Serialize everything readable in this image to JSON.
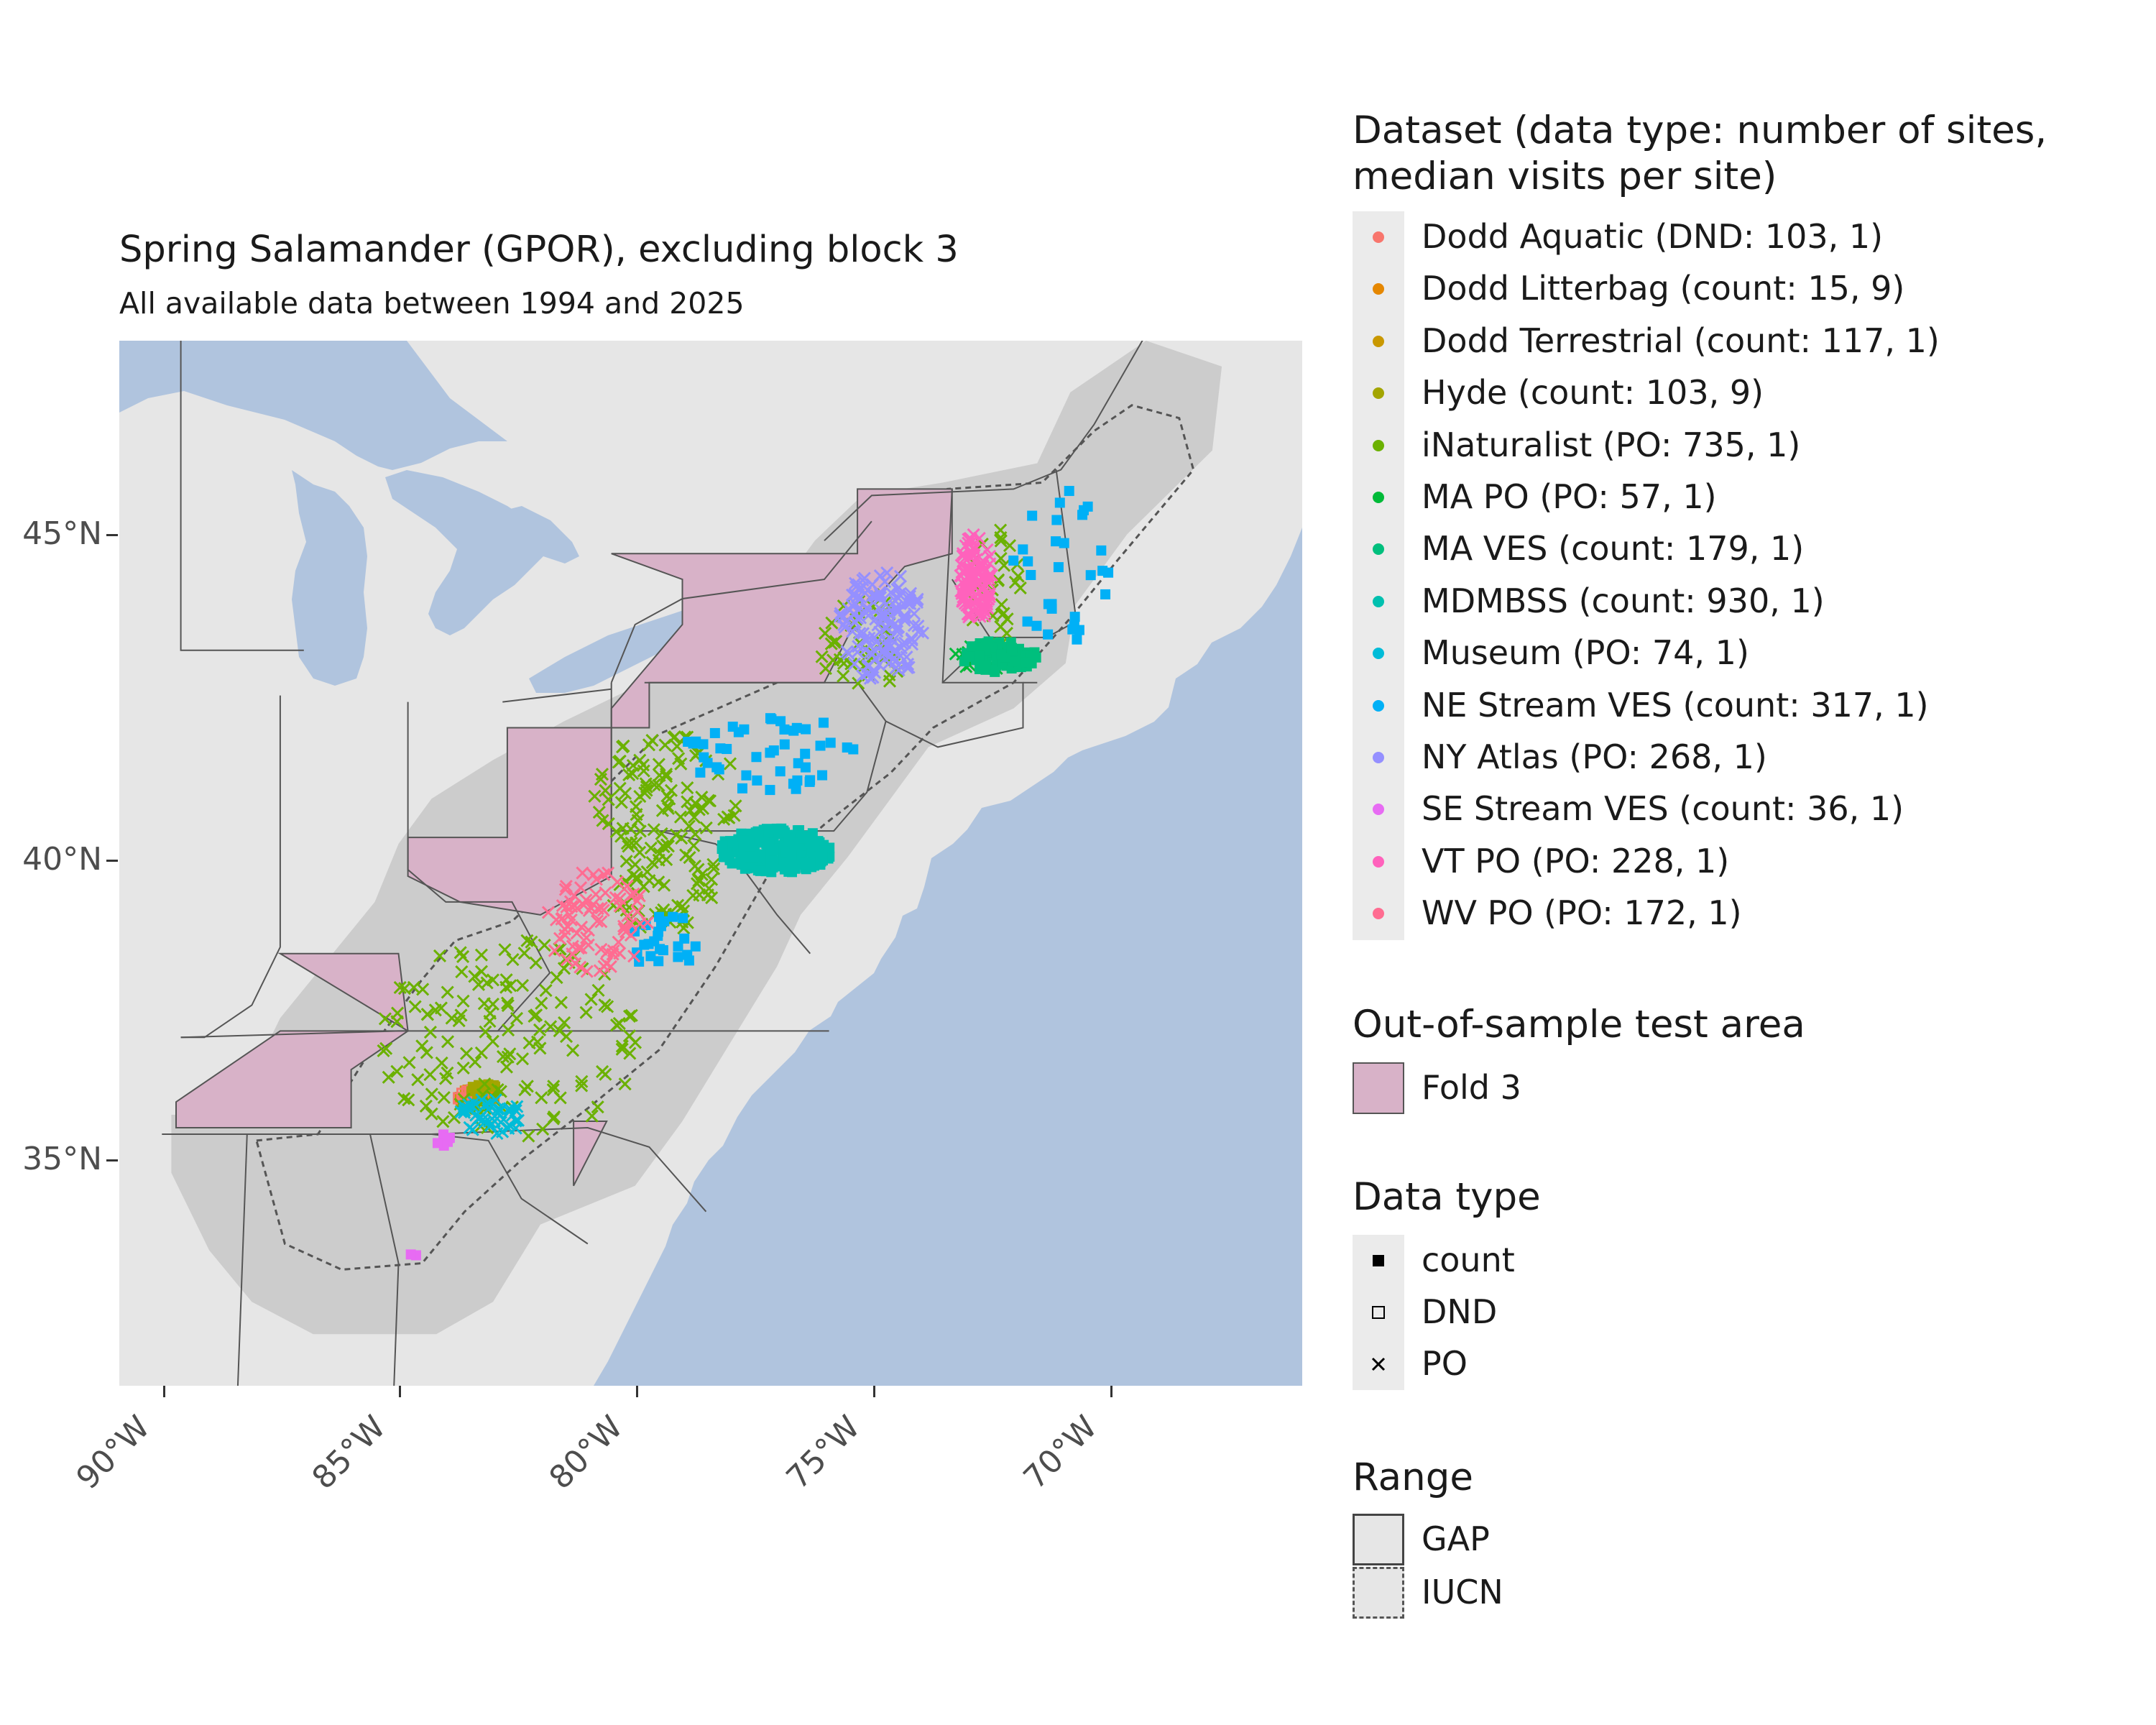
{
  "title": "Spring Salamander (GPOR), excluding block 3",
  "subtitle": "All available data between 1994 and 2025",
  "axes": {
    "y_labels": [
      "45°N",
      "40°N",
      "35°N"
    ],
    "x_labels": [
      "90°W",
      "85°W",
      "80°W",
      "75°W",
      "70°W"
    ],
    "lat_range": [
      31.1,
      47.3
    ],
    "lon_range": [
      -90.9,
      -65.9
    ]
  },
  "colors": {
    "ocean": "#b0c4de",
    "land": "#e6e6e6",
    "range_fill": "#cccccc",
    "fold_fill": "#d8b2c8",
    "state_line": "#555555"
  },
  "legend": {
    "dataset": {
      "title_line1": "Dataset (data type: number of sites,",
      "title_line2": "median visits per site)",
      "items": [
        {
          "label": "Dodd Aquatic (DND: 103, 1)",
          "color": "#f8766d"
        },
        {
          "label": "Dodd Litterbag (count: 15, 9)",
          "color": "#e58700"
        },
        {
          "label": "Dodd Terrestrial (count: 117, 1)",
          "color": "#c99800"
        },
        {
          "label": "Hyde (count: 103, 9)",
          "color": "#a3a500"
        },
        {
          "label": "iNaturalist (PO: 735, 1)",
          "color": "#6bb100"
        },
        {
          "label": "MA PO (PO: 57, 1)",
          "color": "#00ba38"
        },
        {
          "label": "MA VES (count: 179, 1)",
          "color": "#00bf7d"
        },
        {
          "label": "MDMBSS (count: 930, 1)",
          "color": "#00c0af"
        },
        {
          "label": "Museum (PO: 74, 1)",
          "color": "#00bcd8"
        },
        {
          "label": "NE Stream VES (count: 317, 1)",
          "color": "#00b0f6"
        },
        {
          "label": "NY Atlas (PO: 268, 1)",
          "color": "#9590ff"
        },
        {
          "label": "SE Stream VES (count: 36, 1)",
          "color": "#e76bf3"
        },
        {
          "label": "VT PO (PO: 228, 1)",
          "color": "#ff62bc"
        },
        {
          "label": "WV PO (PO: 172, 1)",
          "color": "#ff6c91"
        }
      ]
    },
    "test_area": {
      "title": "Out-of-sample test area",
      "label": "Fold 3"
    },
    "data_type": {
      "title": "Data type",
      "items": [
        "count",
        "DND",
        "PO"
      ]
    },
    "range": {
      "title": "Range",
      "items": [
        "GAP",
        "IUCN"
      ]
    }
  },
  "observations": {
    "point_groups": [
      {
        "dataset": "Dodd Litterbag",
        "shape": "count",
        "center": [
          -83.3,
          35.6
        ],
        "spread": [
          0.35,
          0.1
        ],
        "n": 20
      },
      {
        "dataset": "Dodd Terrestrial",
        "shape": "count",
        "center": [
          -83.4,
          35.55
        ],
        "spread": [
          0.4,
          0.15
        ],
        "n": 15
      },
      {
        "dataset": "Dodd Aquatic",
        "shape": "DND",
        "center": [
          -83.5,
          35.6
        ],
        "spread": [
          0.3,
          0.1
        ],
        "n": 10
      },
      {
        "dataset": "Hyde",
        "shape": "count",
        "center": [
          -83.2,
          35.7
        ],
        "spread": [
          0.3,
          0.15
        ],
        "n": 12
      },
      {
        "dataset": "iNaturalist",
        "shape": "PO",
        "center": [
          -82.7,
          36.5
        ],
        "spread": [
          2.8,
          1.6
        ],
        "n": 150
      },
      {
        "dataset": "iNaturalist",
        "shape": "PO",
        "center": [
          -79.3,
          40.3
        ],
        "spread": [
          1.6,
          0.9
        ],
        "n": 90
      },
      {
        "dataset": "iNaturalist",
        "shape": "PO",
        "center": [
          -75.2,
          42.6
        ],
        "spread": [
          0.9,
          0.8
        ],
        "n": 45
      },
      {
        "dataset": "iNaturalist",
        "shape": "PO",
        "center": [
          -72.4,
          43.4
        ],
        "spread": [
          0.6,
          1.0
        ],
        "n": 30
      },
      {
        "dataset": "iNaturalist",
        "shape": "PO",
        "center": [
          -79.4,
          38.9
        ],
        "spread": [
          1.2,
          0.8
        ],
        "n": 60
      },
      {
        "dataset": "MA PO",
        "shape": "PO",
        "center": [
          -72.5,
          42.4
        ],
        "spread": [
          0.8,
          0.2
        ],
        "n": 25
      },
      {
        "dataset": "MA VES",
        "shape": "count",
        "center": [
          -72.3,
          42.4
        ],
        "spread": [
          0.8,
          0.25
        ],
        "n": 70
      },
      {
        "dataset": "MDMBSS",
        "shape": "count",
        "center": [
          -77.0,
          39.4
        ],
        "spread": [
          1.2,
          0.35
        ],
        "n": 260
      },
      {
        "dataset": "Museum",
        "shape": "PO",
        "center": [
          -83.0,
          35.3
        ],
        "spread": [
          0.7,
          0.3
        ],
        "n": 40
      },
      {
        "dataset": "NE Stream VES",
        "shape": "count",
        "center": [
          -77.0,
          40.9
        ],
        "spread": [
          2.0,
          0.6
        ],
        "n": 45
      },
      {
        "dataset": "NE Stream VES",
        "shape": "count",
        "center": [
          -71.0,
          43.8
        ],
        "spread": [
          1.2,
          1.2
        ],
        "n": 30
      },
      {
        "dataset": "NE Stream VES",
        "shape": "count",
        "center": [
          -79.4,
          38.0
        ],
        "spread": [
          0.7,
          0.5
        ],
        "n": 25
      },
      {
        "dataset": "NY Atlas",
        "shape": "PO",
        "center": [
          -74.8,
          42.9
        ],
        "spread": [
          0.9,
          0.9
        ],
        "n": 140
      },
      {
        "dataset": "SE Stream VES",
        "shape": "count",
        "center": [
          -84.7,
          33.1
        ],
        "spread": [
          0.1,
          0.1
        ],
        "n": 2
      },
      {
        "dataset": "SE Stream VES",
        "shape": "count",
        "center": [
          -84.1,
          34.9
        ],
        "spread": [
          0.25,
          0.1
        ],
        "n": 6
      },
      {
        "dataset": "VT PO",
        "shape": "PO",
        "center": [
          -72.8,
          43.6
        ],
        "spread": [
          0.35,
          0.7
        ],
        "n": 110
      },
      {
        "dataset": "WV PO",
        "shape": "PO",
        "center": [
          -80.8,
          38.3
        ],
        "spread": [
          1.1,
          0.8
        ],
        "n": 80
      }
    ]
  }
}
